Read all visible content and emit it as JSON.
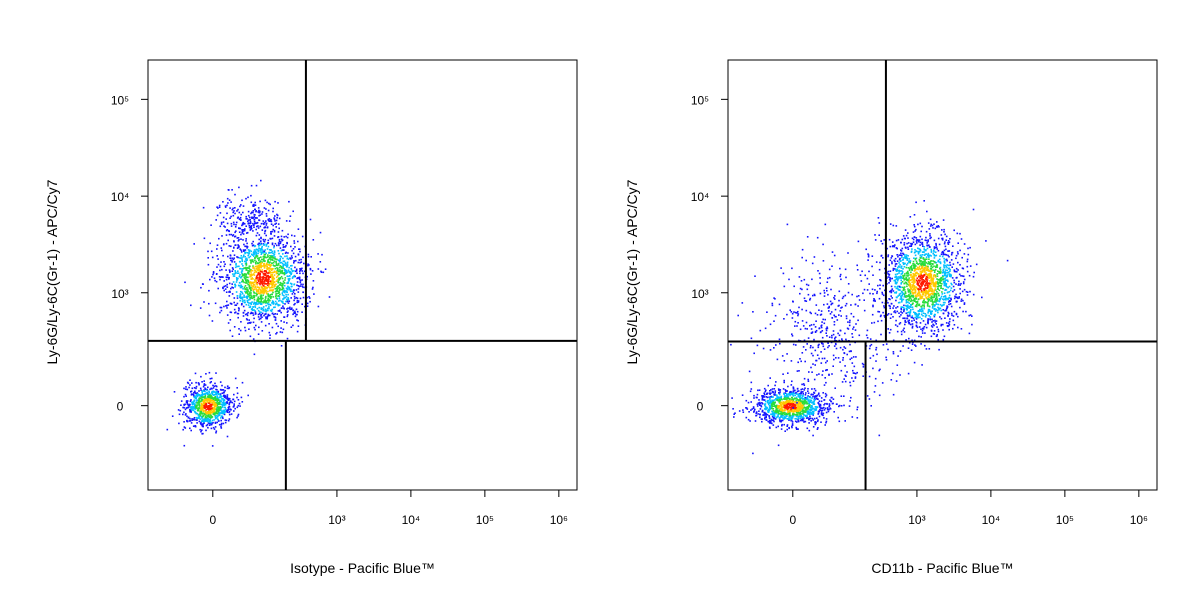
{
  "chart_data": [
    {
      "type": "density-scatter",
      "x_label": "Isotype - Pacific Blue™",
      "y_label": "Ly-6G/Ly-6C(Gr-1) - APC/Cy7",
      "xscale": "biexponential",
      "yscale": "biexponential",
      "xlim": [
        -155,
        1760000
      ],
      "ylim": [
        -500,
        255000
      ],
      "xticks": [
        0,
        {
          "value": 1000,
          "label": "10³"
        },
        {
          "value": 10000,
          "label": "10⁴"
        },
        {
          "value": 100000,
          "label": "10⁵"
        },
        {
          "value": 1000000,
          "label": "10⁶"
        }
      ],
      "yticks": [
        0,
        {
          "value": 1000,
          "label": "10³"
        },
        {
          "value": 10000,
          "label": "10⁴"
        },
        {
          "value": 100000,
          "label": "10⁵"
        }
      ],
      "gates": {
        "y": 305,
        "x_upper": 380,
        "x_lower": 202
      },
      "populations": [
        {
          "x": 95,
          "y": 1430
        },
        {
          "x": -7,
          "y": 0
        },
        {
          "x": 60,
          "y": 6000
        }
      ]
    },
    {
      "type": "density-scatter",
      "x_label": "CD11b - Pacific Blue™",
      "y_label": "Ly-6G/Ly-6C(Gr-1) - APC/Cy7",
      "xscale": "biexponential",
      "yscale": "biexponential",
      "xlim": [
        -155,
        1760000
      ],
      "ylim": [
        -500,
        255000
      ],
      "xticks": [
        0,
        {
          "value": 1000,
          "label": "10³"
        },
        {
          "value": 10000,
          "label": "10⁴"
        },
        {
          "value": 100000,
          "label": "10⁵"
        },
        {
          "value": 1000000,
          "label": "10⁶"
        }
      ],
      "yticks": [
        0,
        {
          "value": 1000,
          "label": "10³"
        },
        {
          "value": 10000,
          "label": "10⁴"
        },
        {
          "value": 100000,
          "label": "10⁵"
        }
      ],
      "gates": {
        "y": 300,
        "x_upper": 380,
        "x_lower": 200
      },
      "populations": [
        {
          "x": 1170,
          "y": 1300
        },
        {
          "x": -4,
          "y": 0
        },
        {
          "x": 60,
          "y": 405
        }
      ]
    }
  ]
}
